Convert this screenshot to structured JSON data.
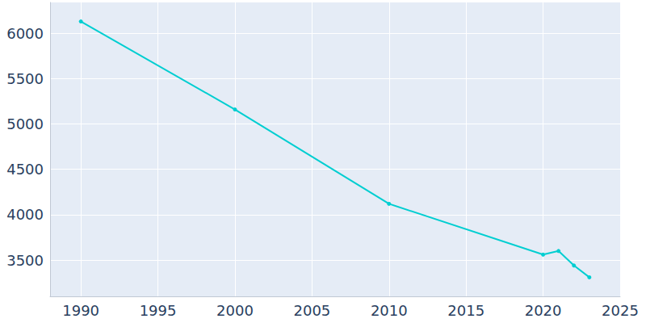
{
  "chart_data": {
    "type": "line",
    "x": [
      1990,
      2000,
      2010,
      2020,
      2021,
      2022,
      2023
    ],
    "values": [
      6130,
      5160,
      4120,
      3560,
      3600,
      3440,
      3310
    ],
    "color": "#00ced1",
    "marker": "circle",
    "xlim": [
      1988,
      2025
    ],
    "xticks": [
      1990,
      1995,
      2000,
      2005,
      2010,
      2015,
      2020,
      2025
    ],
    "ylim": [
      3100,
      6340
    ],
    "yticks": [
      3500,
      4000,
      4500,
      5000,
      5500,
      6000
    ],
    "grid": true
  }
}
